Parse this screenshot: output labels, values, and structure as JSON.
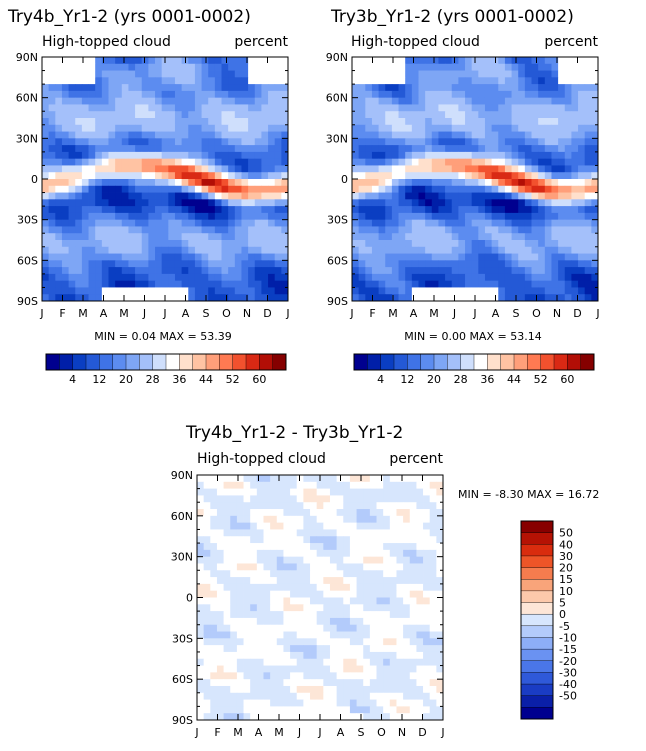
{
  "palette": {
    "abs": [
      "#00008f",
      "#001fa8",
      "#0a3ec2",
      "#2459d6",
      "#3f73e6",
      "#5c8cf0",
      "#7ea6f5",
      "#a4c0fa",
      "#cfdffc",
      "#ffffff",
      "#ffe0cc",
      "#ffc3a3",
      "#ff9f7a",
      "#ff7a52",
      "#f2512e",
      "#d92914",
      "#b20e06",
      "#850000"
    ],
    "diff": [
      "#00008f",
      "#0a1fa8",
      "#1a3cc4",
      "#2f59d9",
      "#4a76e8",
      "#6a92f2",
      "#8daef7",
      "#b3cbfb",
      "#d7e6fd",
      "#ffffff",
      "#fde6d7",
      "#fcc9ab",
      "#f9a47a",
      "#f57c4e",
      "#ee5528",
      "#d92c0e",
      "#b51204",
      "#870000"
    ]
  },
  "chart_data": [
    {
      "id": "left",
      "type": "heatmap",
      "title": "Try4b_Yr1-2 (yrs 0001-0002)",
      "variable": "High-topped cloud",
      "units": "percent",
      "x_tick_labels": [
        "J",
        "F",
        "M",
        "A",
        "M",
        "J",
        "J",
        "A",
        "S",
        "O",
        "N",
        "D",
        "J"
      ],
      "y_tick_labels": [
        "90N",
        "60N",
        "30N",
        "0",
        "30S",
        "60S",
        "90S"
      ],
      "ylim": [
        -90,
        90
      ],
      "stats_text": "MIN =   0.04 MAX =   53.39",
      "colorbar_labels": [
        "4",
        "12",
        "20",
        "28",
        "36",
        "44",
        "52",
        "60"
      ],
      "contour_levels": [
        2,
        4,
        6,
        8,
        10,
        12,
        14,
        16,
        20,
        24,
        28,
        32,
        36,
        40,
        44,
        48,
        52,
        56,
        60
      ],
      "min": 0.04,
      "max": 53.39
    },
    {
      "id": "right",
      "type": "heatmap",
      "title": "Try3b_Yr1-2 (yrs 0001-0002)",
      "variable": "High-topped cloud",
      "units": "percent",
      "x_tick_labels": [
        "J",
        "F",
        "M",
        "A",
        "M",
        "J",
        "J",
        "A",
        "S",
        "O",
        "N",
        "D",
        "J"
      ],
      "y_tick_labels": [
        "90N",
        "60N",
        "30N",
        "0",
        "30S",
        "60S",
        "90S"
      ],
      "ylim": [
        -90,
        90
      ],
      "stats_text": "MIN =   0.00 MAX =   53.14",
      "colorbar_labels": [
        "4",
        "12",
        "20",
        "28",
        "36",
        "44",
        "52",
        "60"
      ],
      "contour_levels": [
        2,
        4,
        6,
        8,
        10,
        12,
        14,
        16,
        20,
        24,
        28,
        32,
        36,
        40,
        44,
        48,
        52,
        56,
        60
      ],
      "min": 0.0,
      "max": 53.14
    },
    {
      "id": "diff",
      "type": "heatmap",
      "title": "Try4b_Yr1-2 - Try3b_Yr1-2",
      "variable": "High-topped cloud",
      "units": "percent",
      "x_tick_labels": [
        "J",
        "F",
        "M",
        "A",
        "M",
        "J",
        "J",
        "A",
        "S",
        "O",
        "N",
        "D",
        "J"
      ],
      "y_tick_labels": [
        "90N",
        "60N",
        "30N",
        "0",
        "30S",
        "60S",
        "90S"
      ],
      "ylim": [
        -90,
        90
      ],
      "stats_text": "MIN =   -8.30 MAX =   16.72",
      "colorbar_labels": [
        "50",
        "40",
        "30",
        "20",
        "15",
        "10",
        "5",
        "0",
        "-5",
        "-10",
        "-15",
        "-20",
        "-30",
        "-40",
        "-50"
      ],
      "contour_levels": [
        -50,
        -40,
        -30,
        -20,
        -15,
        -10,
        -5,
        0,
        5,
        10,
        15,
        20,
        30,
        40,
        50
      ],
      "min": -8.3,
      "max": 16.72
    }
  ]
}
